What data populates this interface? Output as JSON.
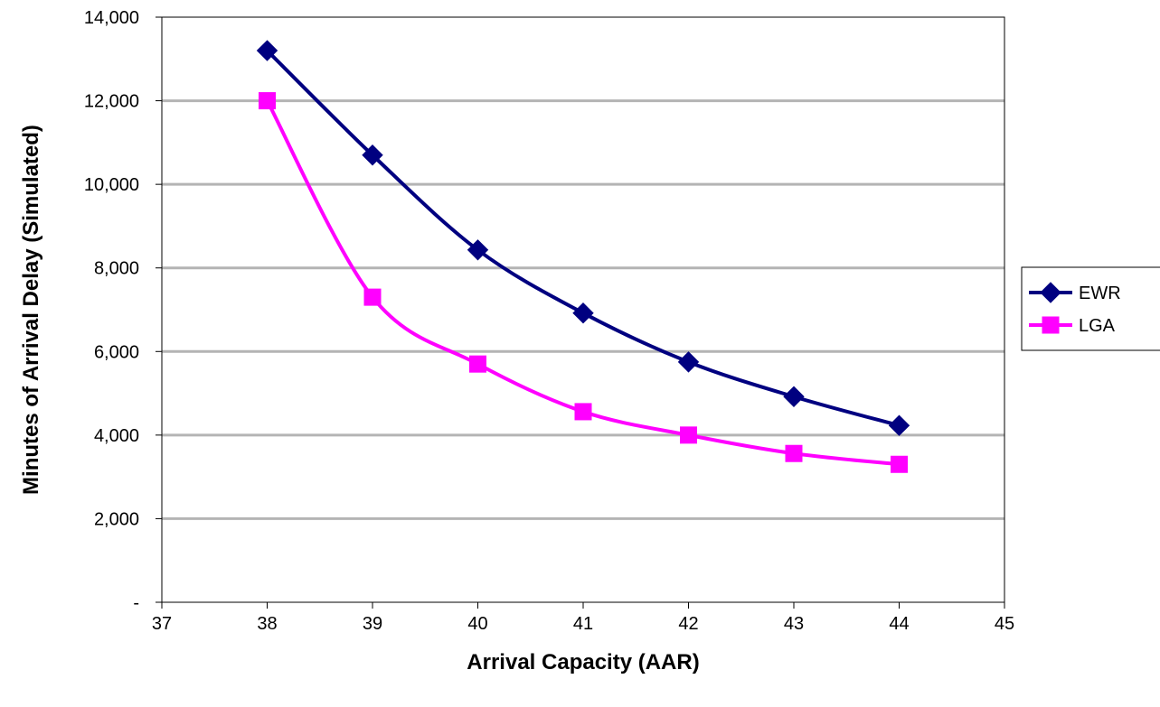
{
  "chart_data": {
    "type": "line",
    "title": "",
    "xlabel": "Arrival Capacity (AAR)",
    "ylabel": "Minutes of Arrival Delay (Simulated)",
    "xlim": [
      37,
      45
    ],
    "ylim": [
      0,
      14000
    ],
    "x_ticks": [
      "37",
      "38",
      "39",
      "40",
      "41",
      "42",
      "43",
      "44",
      "45"
    ],
    "y_ticks": [
      {
        "value": 0,
        "label": "-"
      },
      {
        "value": 2000,
        "label": "2,000"
      },
      {
        "value": 4000,
        "label": "4,000"
      },
      {
        "value": 6000,
        "label": "6,000"
      },
      {
        "value": 8000,
        "label": "8,000"
      },
      {
        "value": 10000,
        "label": "10,000"
      },
      {
        "value": 12000,
        "label": "12,000"
      },
      {
        "value": 14000,
        "label": "14,000"
      }
    ],
    "grid": "horizontal",
    "legend_position": "right",
    "x": [
      38,
      39,
      40,
      41,
      42,
      43,
      44
    ],
    "series": [
      {
        "name": "EWR",
        "marker": "diamond",
        "color": "#000080",
        "values": [
          13200,
          10700,
          8430,
          6920,
          5750,
          4920,
          4230
        ]
      },
      {
        "name": "LGA",
        "marker": "square",
        "color": "#ff00ff",
        "values": [
          12000,
          7300,
          5700,
          4560,
          4000,
          3560,
          3300
        ]
      }
    ]
  }
}
